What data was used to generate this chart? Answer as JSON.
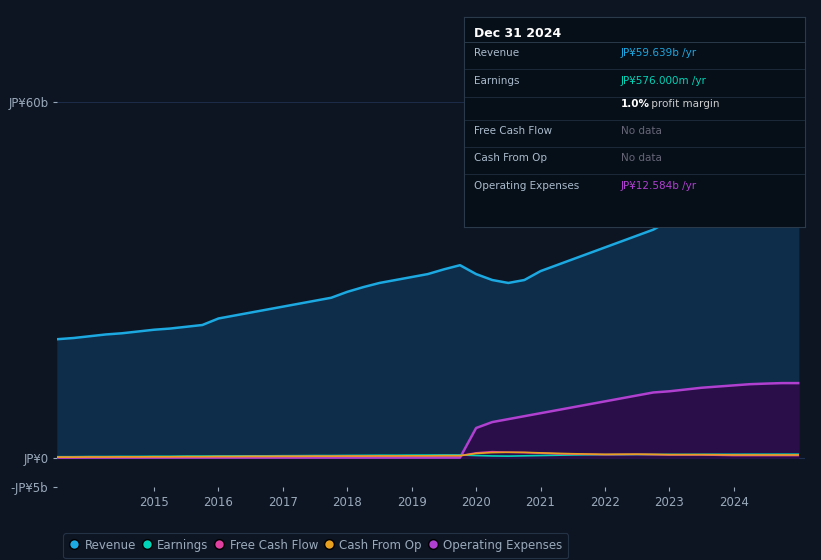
{
  "background_color": "#0d1523",
  "plot_bg_color": "#0d1523",
  "years": [
    2013.5,
    2013.75,
    2014.0,
    2014.25,
    2014.5,
    2014.75,
    2015.0,
    2015.25,
    2015.5,
    2015.75,
    2016.0,
    2016.25,
    2016.5,
    2016.75,
    2017.0,
    2017.25,
    2017.5,
    2017.75,
    2018.0,
    2018.25,
    2018.5,
    2018.75,
    2019.0,
    2019.25,
    2019.5,
    2019.75,
    2020.0,
    2020.25,
    2020.5,
    2020.75,
    2021.0,
    2021.25,
    2021.5,
    2021.75,
    2022.0,
    2022.25,
    2022.5,
    2022.75,
    2023.0,
    2023.25,
    2023.5,
    2023.75,
    2024.0,
    2024.25,
    2024.5,
    2024.75,
    2025.0
  ],
  "revenue": [
    20,
    20.2,
    20.5,
    20.8,
    21.0,
    21.3,
    21.6,
    21.8,
    22.1,
    22.4,
    23.5,
    24.0,
    24.5,
    25.0,
    25.5,
    26.0,
    26.5,
    27.0,
    28.0,
    28.8,
    29.5,
    30.0,
    30.5,
    31.0,
    31.8,
    32.5,
    31.0,
    30.0,
    29.5,
    30.0,
    31.5,
    32.5,
    33.5,
    34.5,
    35.5,
    36.5,
    37.5,
    38.5,
    40.0,
    42.0,
    44.0,
    46.5,
    49.0,
    52.0,
    55.0,
    58.0,
    59.639
  ],
  "earnings": [
    0.15,
    0.15,
    0.18,
    0.18,
    0.2,
    0.2,
    0.22,
    0.22,
    0.25,
    0.25,
    0.27,
    0.28,
    0.3,
    0.3,
    0.32,
    0.33,
    0.35,
    0.35,
    0.37,
    0.38,
    0.4,
    0.4,
    0.42,
    0.43,
    0.45,
    0.45,
    0.35,
    0.28,
    0.25,
    0.3,
    0.35,
    0.4,
    0.45,
    0.48,
    0.5,
    0.5,
    0.52,
    0.52,
    0.54,
    0.54,
    0.55,
    0.56,
    0.56,
    0.57,
    0.57,
    0.576,
    0.576
  ],
  "free_cash_flow": [
    0.05,
    0.05,
    0.07,
    0.07,
    0.08,
    0.08,
    0.1,
    0.1,
    0.12,
    0.12,
    0.15,
    0.15,
    0.18,
    0.18,
    0.2,
    0.2,
    0.22,
    0.22,
    0.25,
    0.25,
    0.28,
    0.28,
    0.3,
    0.3,
    0.32,
    0.32,
    0.8,
    1.0,
    0.9,
    0.85,
    0.75,
    0.65,
    0.6,
    0.55,
    0.5,
    0.52,
    0.54,
    0.5,
    0.45,
    0.45,
    0.45,
    0.4,
    0.35,
    0.35,
    0.35,
    0.35,
    0.35
  ],
  "cash_from_op": [
    0.08,
    0.08,
    0.1,
    0.1,
    0.12,
    0.12,
    0.14,
    0.14,
    0.16,
    0.16,
    0.18,
    0.18,
    0.2,
    0.2,
    0.22,
    0.22,
    0.24,
    0.24,
    0.26,
    0.26,
    0.28,
    0.28,
    0.3,
    0.3,
    0.32,
    0.32,
    0.7,
    0.85,
    0.9,
    0.88,
    0.8,
    0.72,
    0.65,
    0.6,
    0.55,
    0.57,
    0.58,
    0.55,
    0.5,
    0.5,
    0.5,
    0.48,
    0.45,
    0.45,
    0.45,
    0.45,
    0.45
  ],
  "op_expenses": [
    0.0,
    0.0,
    0.0,
    0.0,
    0.0,
    0.0,
    0.0,
    0.0,
    0.0,
    0.0,
    0.0,
    0.0,
    0.0,
    0.0,
    0.0,
    0.0,
    0.0,
    0.0,
    0.0,
    0.0,
    0.0,
    0.0,
    0.0,
    0.0,
    0.0,
    0.0,
    5.0,
    6.0,
    6.5,
    7.0,
    7.5,
    8.0,
    8.5,
    9.0,
    9.5,
    10.0,
    10.5,
    11.0,
    11.2,
    11.5,
    11.8,
    12.0,
    12.2,
    12.4,
    12.5,
    12.584,
    12.584
  ],
  "ylim": [
    -5,
    65
  ],
  "ytick_positions": [
    -5,
    0,
    60
  ],
  "ytick_labels": [
    "-JP¥5b",
    "JP¥0",
    "JP¥60b"
  ],
  "xtick_years": [
    2015,
    2016,
    2017,
    2018,
    2019,
    2020,
    2021,
    2022,
    2023,
    2024
  ],
  "xmin": 2013.5,
  "xmax": 2025.1,
  "legend_items": [
    {
      "label": "Revenue",
      "color": "#1ca8e0"
    },
    {
      "label": "Earnings",
      "color": "#00d4b8"
    },
    {
      "label": "Free Cash Flow",
      "color": "#e040a0"
    },
    {
      "label": "Cash From Op",
      "color": "#e8a020"
    },
    {
      "label": "Operating Expenses",
      "color": "#b040d0"
    }
  ],
  "revenue_line_color": "#1ca8e0",
  "revenue_fill_color": "#0d2d4a",
  "earnings_line_color": "#00d4b8",
  "free_cash_flow_line_color": "#e040a0",
  "cash_from_op_line_color": "#e8a020",
  "op_expenses_line_color": "#b040d0",
  "op_expenses_fill_color": "#2a0e4a",
  "grid_color": "#1e3050",
  "text_color": "#9aaabb",
  "info_box": {
    "date": "Dec 31 2024",
    "bg_color": "#060e18",
    "border_color": "#2a3a4a",
    "rows": [
      {
        "label": "Revenue",
        "value": "JP¥59.639b /yr",
        "vcolor": "#1ca8e0"
      },
      {
        "label": "Earnings",
        "value": "JP¥576.000m /yr",
        "vcolor": "#00d4b8"
      },
      {
        "label": "",
        "value": "1.0%",
        "vcolor": "#ffffff",
        "suffix": " profit margin",
        "scolor": "#cccccc"
      },
      {
        "label": "Free Cash Flow",
        "value": "No data",
        "vcolor": "#666677"
      },
      {
        "label": "Cash From Op",
        "value": "No data",
        "vcolor": "#666677"
      },
      {
        "label": "Operating Expenses",
        "value": "JP¥12.584b /yr",
        "vcolor": "#b040d0"
      }
    ]
  }
}
